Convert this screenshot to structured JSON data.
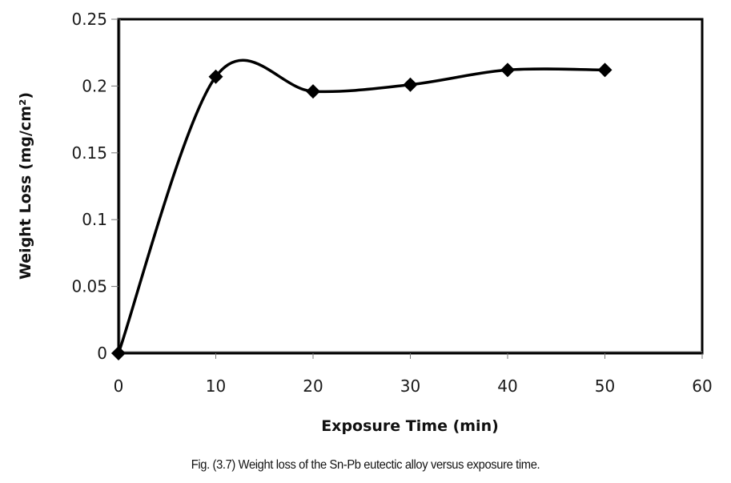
{
  "chart_data": {
    "type": "line",
    "smoothed": true,
    "marker": "diamond",
    "title": "",
    "xlabel": "Exposure Time (min)",
    "ylabel": "Weight Loss (mg/cm²)",
    "xlim": [
      0,
      60
    ],
    "ylim": [
      0,
      0.25
    ],
    "x_ticks": [
      0,
      10,
      20,
      30,
      40,
      50,
      60
    ],
    "x_tick_labels": [
      "0",
      "10",
      "20",
      "30",
      "40",
      "50",
      "60"
    ],
    "y_ticks": [
      0,
      0.05,
      0.1,
      0.15,
      0.2,
      0.25
    ],
    "y_tick_labels": [
      "0",
      "0.05",
      "0.1",
      "0.15",
      "0.2",
      "0.25"
    ],
    "grid": false,
    "legend": "none",
    "series": [
      {
        "name": "Sn-Pb eutectic alloy",
        "color": "#000000",
        "x": [
          0,
          10,
          20,
          30,
          40,
          50
        ],
        "y": [
          0,
          0.207,
          0.196,
          0.201,
          0.212,
          0.212
        ]
      }
    ]
  },
  "caption": "Fig. (3.7) Weight loss of the Sn-Pb eutectic alloy versus exposure time."
}
